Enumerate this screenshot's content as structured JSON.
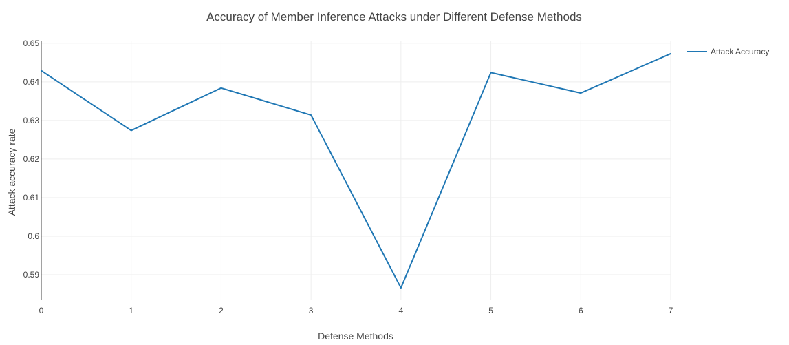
{
  "chart_data": {
    "type": "line",
    "title": "Accuracy of Member Inference Attacks under Different Defense Methods",
    "xlabel": "Defense Methods",
    "ylabel": "Attack accuracy rate",
    "x": [
      0,
      1,
      2,
      3,
      4,
      5,
      6,
      7
    ],
    "series": [
      {
        "name": "Attack Accuracy",
        "color": "#1f77b4",
        "values": [
          0.6429,
          0.6274,
          0.6384,
          0.6314,
          0.5866,
          0.6424,
          0.6371,
          0.6473
        ]
      }
    ],
    "xlim": [
      0,
      7
    ],
    "ylim": [
      0.5834,
      0.6505
    ],
    "x_ticks": [
      0,
      1,
      2,
      3,
      4,
      5,
      6,
      7
    ],
    "x_tick_labels": [
      "0",
      "1",
      "2",
      "3",
      "4",
      "5",
      "6",
      "7"
    ],
    "y_ticks": [
      0.59,
      0.6,
      0.61,
      0.62,
      0.63,
      0.64,
      0.65
    ],
    "y_tick_labels": [
      "0.59",
      "0.6",
      "0.61",
      "0.62",
      "0.63",
      "0.64",
      "0.65"
    ],
    "grid": true,
    "legend_position": "top-right"
  }
}
